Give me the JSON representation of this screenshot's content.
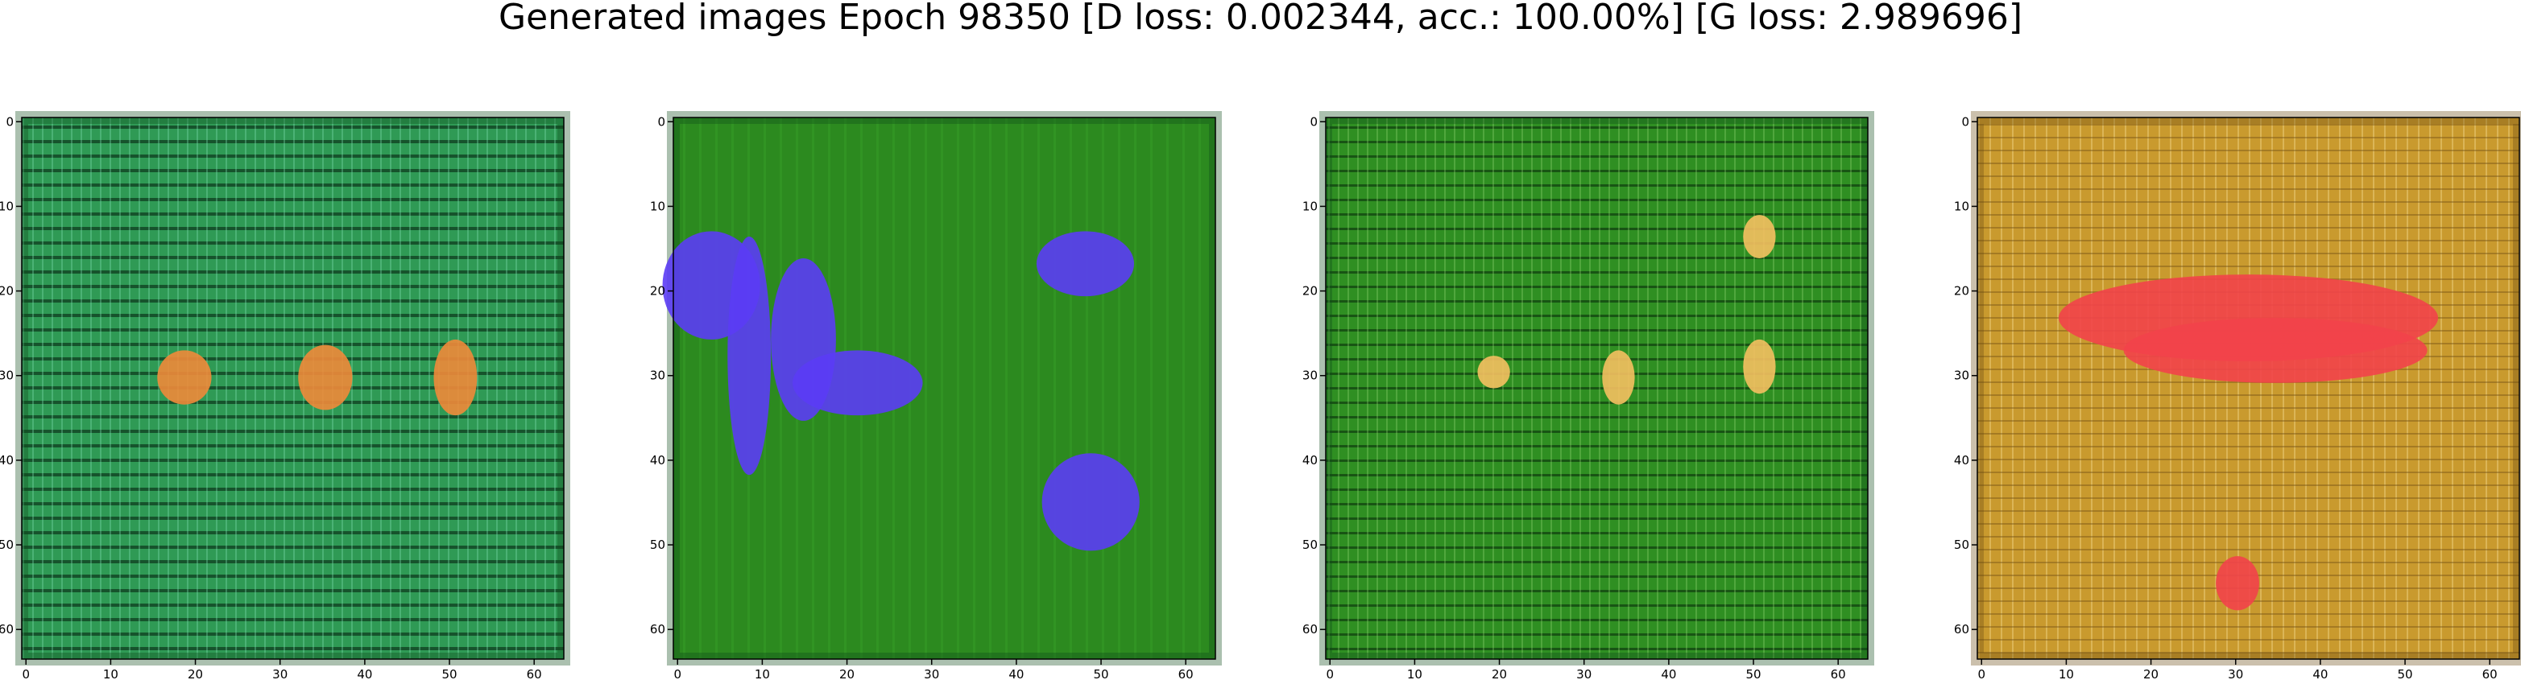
{
  "figure": {
    "title": "Generated images Epoch 98350 [D loss: 0.002344, acc.: 100.00%] [G loss: 2.989696]"
  },
  "chart_data": [
    {
      "type": "image",
      "xlim": [
        0,
        63
      ],
      "ylim": [
        63,
        0
      ],
      "xticks": [
        0,
        10,
        20,
        30,
        40,
        50,
        60
      ],
      "yticks": [
        0,
        10,
        20,
        30,
        40,
        50,
        60
      ],
      "dominant_color": "#2f9a55",
      "highlight_color": "#f06a1e"
    },
    {
      "type": "image",
      "xlim": [
        0,
        63
      ],
      "ylim": [
        63,
        0
      ],
      "xticks": [
        0,
        10,
        20,
        30,
        40,
        50,
        60
      ],
      "yticks": [
        0,
        10,
        20,
        30,
        40,
        50,
        60
      ],
      "dominant_color": "#2c8a1f",
      "highlight_color": "#5a3cf0"
    },
    {
      "type": "image",
      "xlim": [
        0,
        63
      ],
      "ylim": [
        63,
        0
      ],
      "xticks": [
        0,
        10,
        20,
        30,
        40,
        50,
        60
      ],
      "yticks": [
        0,
        10,
        20,
        30,
        40,
        50,
        60
      ],
      "dominant_color": "#2f8f22",
      "highlight_color": "#e8952b"
    },
    {
      "type": "image",
      "xlim": [
        0,
        63
      ],
      "ylim": [
        63,
        0
      ],
      "xticks": [
        0,
        10,
        20,
        30,
        40,
        50,
        60
      ],
      "yticks": [
        0,
        10,
        20,
        30,
        40,
        50,
        60
      ],
      "dominant_color": "#c99a2e",
      "highlight_color": "#f04048"
    }
  ]
}
